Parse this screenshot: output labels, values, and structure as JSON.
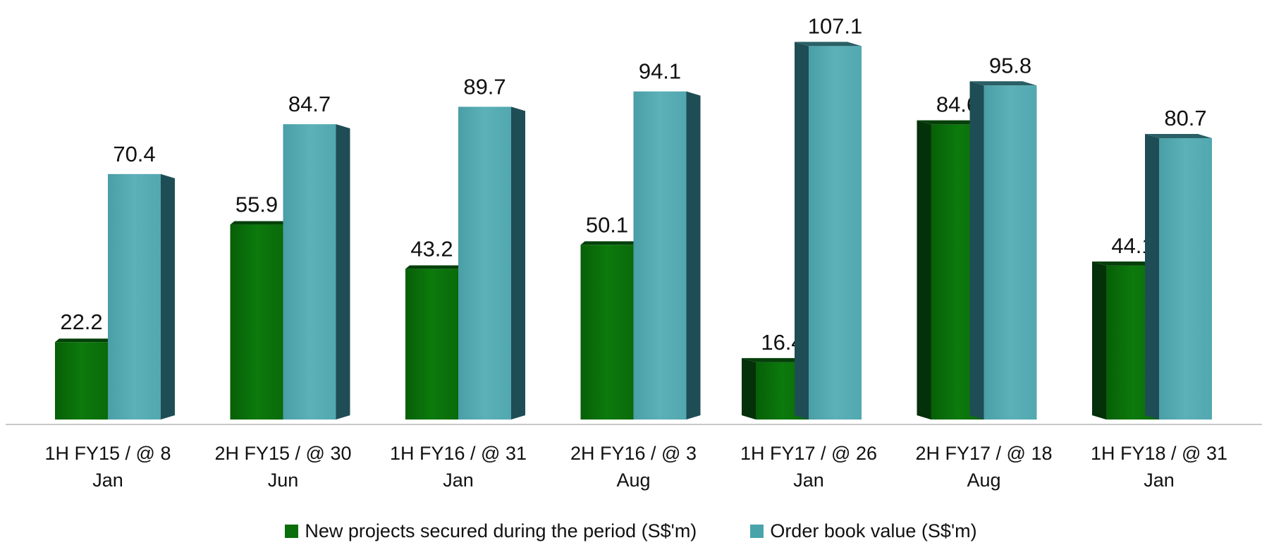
{
  "chart_data": {
    "type": "bar",
    "categories": [
      [
        "1H FY15 / @ 8",
        "Jan"
      ],
      [
        "2H FY15 / @ 30",
        "Jun"
      ],
      [
        "1H FY16 / @ 31",
        "Jan"
      ],
      [
        "2H FY16 / @ 3",
        "Aug"
      ],
      [
        "1H FY17 / @ 26",
        "Jan"
      ],
      [
        "2H FY17 / @ 18",
        "Aug"
      ],
      [
        "1H FY18 / @ 31",
        "Jan"
      ]
    ],
    "series": [
      {
        "name": "New projects secured during the period (S$'m)",
        "color": "#0a6e0a",
        "values": [
          22.2,
          55.9,
          43.2,
          50.1,
          16.4,
          84.6,
          44.1
        ]
      },
      {
        "name": "Order book value (S$'m)",
        "color": "#4aa3ab",
        "values": [
          70.4,
          84.7,
          89.7,
          94.1,
          107.1,
          95.8,
          80.7
        ]
      }
    ],
    "ylim": [
      0,
      110
    ],
    "grid": false,
    "legend_position": "bottom",
    "style": "3d-bar"
  }
}
